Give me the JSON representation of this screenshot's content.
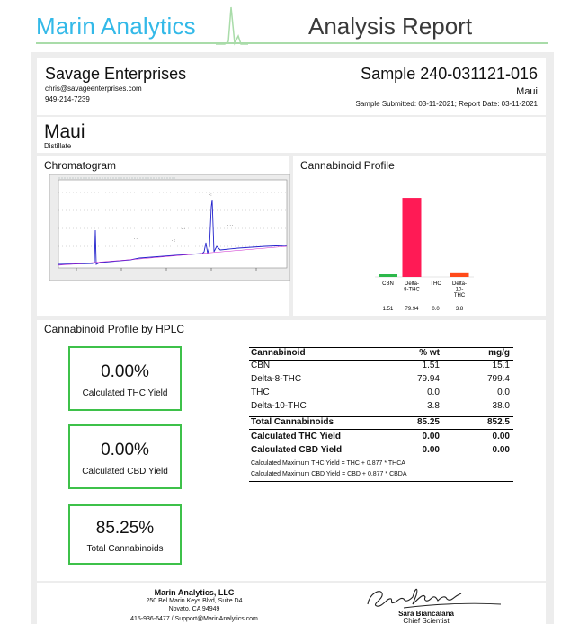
{
  "header": {
    "brand": "Marin Analytics",
    "title": "Analysis Report"
  },
  "client": {
    "name": "Savage Enterprises",
    "email": "chris@savageenterprises.com",
    "phone": "949-214-7239"
  },
  "sample": {
    "id": "Sample 240-031121-016",
    "strain": "Maui",
    "dates": "Sample Submitted: 03-11-2021;  Report Date: 03-11-2021"
  },
  "product": {
    "name": "Maui",
    "type": "Distillate"
  },
  "chromatogram": {
    "label": "Chromatogram"
  },
  "profile": {
    "label": "Cannabinoid Profile"
  },
  "chart_data": {
    "type": "bar",
    "title": "Cannabinoid Profile",
    "categories": [
      "CBN",
      "Delta-8-THC",
      "THC",
      "Delta-10-THC"
    ],
    "category_label_lines": [
      [
        "CBN"
      ],
      [
        "Delta-",
        "8-THC"
      ],
      [
        "THC"
      ],
      [
        "Delta-",
        "10-",
        "THC"
      ]
    ],
    "values": [
      1.51,
      79.94,
      0.0,
      3.8
    ],
    "value_labels": [
      "1.51",
      "79.94",
      "0.0",
      "3.8"
    ],
    "colors": [
      "#2db84b",
      "#ff1a55",
      "#7a7a7a",
      "#ff4a1a"
    ],
    "ylim": [
      0,
      100
    ],
    "grid": false,
    "legend": "none"
  },
  "hplc": {
    "title": "Cannabinoid Profile by HPLC",
    "boxes": [
      {
        "value": "0.00%",
        "label": "Calculated THC Yield"
      },
      {
        "value": "0.00%",
        "label": "Calculated CBD Yield"
      },
      {
        "value": "85.25%",
        "label": "Total Cannabinoids"
      }
    ],
    "table": {
      "headers": [
        "Cannabinoid",
        "% wt",
        "mg/g"
      ],
      "rows": [
        [
          "CBN",
          "1.51",
          "15.1"
        ],
        [
          "Delta-8-THC",
          "79.94",
          "799.4"
        ],
        [
          "THC",
          "0.0",
          "0.0"
        ],
        [
          "Delta-10-THC",
          "3.8",
          "38.0"
        ]
      ],
      "total": [
        "Total Cannabinoids",
        "85.25",
        "852.5"
      ],
      "yields": [
        [
          "Calculated THC Yield",
          "0.00",
          "0.00"
        ],
        [
          "Calculated CBD Yield",
          "0.00",
          "0.00"
        ]
      ],
      "notes": [
        "Calculated Maximum THC Yield = THC + 0.877 * THCA",
        "Calculated Maximum CBD Yield = CBD + 0.877 * CBDA"
      ]
    }
  },
  "footer": {
    "lab_name": "Marin Analytics, LLC",
    "address1": "250 Bel Marin Keys Blvd, Suite D4",
    "address2": "Novato, CA 94949",
    "contact": "415-936-6477 / Support@MarinAnalytics.com",
    "signer_name": "Sara Biancalana",
    "signer_title": "Chief Scientist"
  },
  "colors": {
    "brand": "#33b9e8",
    "box_border": "#3ec14a",
    "header_line": "#a9dca9"
  }
}
